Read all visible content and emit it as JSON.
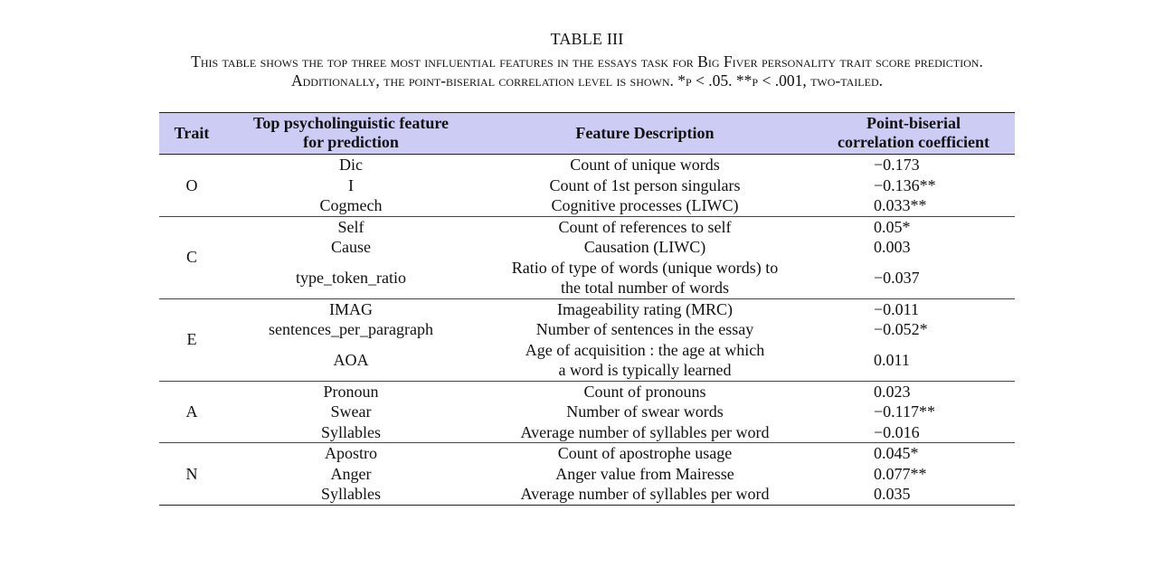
{
  "caption": {
    "title": "TABLE III",
    "line1": "This table shows the top three most influential features in the essays task for Big Fiver personality trait score prediction.",
    "line2": "Additionally, the point-biserial correlation level is shown. *p < .05. **p < .001, two-tailed."
  },
  "table": {
    "headers": {
      "trait": "Trait",
      "feature_line1": "Top psycholinguistic feature",
      "feature_line2": "for prediction",
      "description": "Feature Description",
      "corr_line1": "Point-biserial",
      "corr_line2": "correlation coefficient"
    },
    "groups": [
      {
        "trait": "O",
        "rows": [
          {
            "feature": "Dic",
            "description": "Count of unique words",
            "corr": "−0.173"
          },
          {
            "feature": "I",
            "description": "Count of 1st person singulars",
            "corr": "−0.136**"
          },
          {
            "feature": "Cogmech",
            "description": "Cognitive processes (LIWC)",
            "corr": "0.033**"
          }
        ]
      },
      {
        "trait": "C",
        "rows": [
          {
            "feature": "Self",
            "description": "Count of references to self",
            "corr": "0.05*"
          },
          {
            "feature": "Cause",
            "description": "Causation (LIWC)",
            "corr": "0.003"
          },
          {
            "feature": "type_token_ratio",
            "description_line1": "Ratio of type of words (unique words) to",
            "description_line2": "the total number of words",
            "corr": "−0.037"
          }
        ]
      },
      {
        "trait": "E",
        "rows": [
          {
            "feature": "IMAG",
            "description": "Imageability rating (MRC)",
            "corr": "−0.011"
          },
          {
            "feature": "sentences_per_paragraph",
            "description": "Number of sentences in the essay",
            "corr": "−0.052*"
          },
          {
            "feature": "AOA",
            "description_line1": "Age of acquisition : the age at which",
            "description_line2": "a word is typically learned",
            "corr": "0.011"
          }
        ]
      },
      {
        "trait": "A",
        "rows": [
          {
            "feature": "Pronoun",
            "description": "Count of pronouns",
            "corr": "0.023"
          },
          {
            "feature": "Swear",
            "description": "Number of swear words",
            "corr": "−0.117**"
          },
          {
            "feature": "Syllables",
            "description": "Average number of syllables per word",
            "corr": "−0.016"
          }
        ]
      },
      {
        "trait": "N",
        "rows": [
          {
            "feature": "Apostro",
            "description": "Count of apostrophe usage",
            "corr": "0.045*"
          },
          {
            "feature": "Anger",
            "description": "Anger value from Mairesse",
            "corr": "0.077**"
          },
          {
            "feature": "Syllables",
            "description": "Average number of syllables per word",
            "corr": "0.035"
          }
        ]
      }
    ]
  }
}
